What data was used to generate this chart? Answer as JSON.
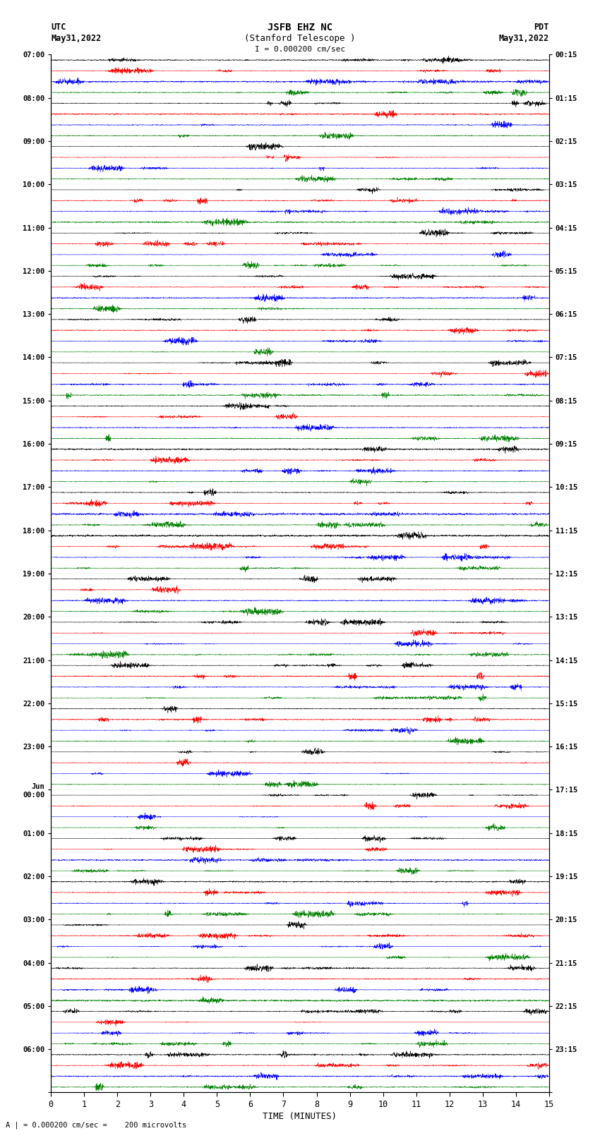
{
  "title_line1": "JSFB EHZ NC",
  "title_line2": "(Stanford Telescope )",
  "scale_label": "I = 0.000200 cm/sec",
  "left_header1": "UTC",
  "left_header2": "May31,2022",
  "right_header1": "PDT",
  "right_header2": "May31,2022",
  "bottom_label": "TIME (MINUTES)",
  "bottom_note": "A | = 0.000200 cm/sec =    200 microvolts",
  "xlabel_ticks": [
    0,
    1,
    2,
    3,
    4,
    5,
    6,
    7,
    8,
    9,
    10,
    11,
    12,
    13,
    14,
    15
  ],
  "left_times_hourly": [
    "07:00",
    "08:00",
    "09:00",
    "10:00",
    "11:00",
    "12:00",
    "13:00",
    "14:00",
    "15:00",
    "16:00",
    "17:00",
    "18:00",
    "19:00",
    "20:00",
    "21:00",
    "22:00",
    "23:00",
    "Jun\n00:00",
    "01:00",
    "02:00",
    "03:00",
    "04:00",
    "05:00",
    "06:00"
  ],
  "right_times_hourly": [
    "00:15",
    "01:15",
    "02:15",
    "03:15",
    "04:15",
    "05:15",
    "06:15",
    "07:15",
    "08:15",
    "09:15",
    "10:15",
    "11:15",
    "12:15",
    "13:15",
    "14:15",
    "15:15",
    "16:15",
    "17:15",
    "18:15",
    "19:15",
    "20:15",
    "21:15",
    "22:15",
    "23:15"
  ],
  "colors": [
    "black",
    "red",
    "blue",
    "green"
  ],
  "n_rows": 96,
  "n_hours": 24,
  "traces_per_hour": 4,
  "fig_width": 8.5,
  "fig_height": 16.13,
  "bg_color": "white"
}
